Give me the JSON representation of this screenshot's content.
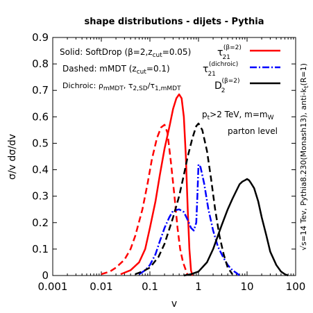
{
  "chart_data": {
    "type": "line",
    "title": "shape distributions - dijets - Pythia",
    "xlabel": "v",
    "ylabel": "σ/v dσ/dv",
    "xscale": "log",
    "xlim": [
      0.001,
      100
    ],
    "ylim": [
      0,
      0.9
    ],
    "x_ticks": [
      0.001,
      0.01,
      0.1,
      1,
      10,
      100
    ],
    "x_tick_labels": [
      "0.001",
      "0.01",
      "0.1",
      "1",
      "10",
      "100"
    ],
    "y_ticks": [
      0,
      0.1,
      0.2,
      0.3,
      0.4,
      0.5,
      0.6,
      0.7,
      0.8,
      0.9
    ],
    "y_tick_labels": [
      "0",
      "0.1",
      "0.2",
      "0.3",
      "0.4",
      "0.5",
      "0.6",
      "0.7",
      "0.8",
      "0.9"
    ],
    "annotations": {
      "solid": "Solid: SoftDrop (β=2,z",
      "solid_sub": "cut",
      "solid_end": "=0.05)",
      "dashed": "Dashed: mMDT (z",
      "dashed_sub": "cut",
      "dashed_end": "=0.1)",
      "dichroic": "Dichroic: ρ",
      "dichroic_sub1": "mMDT",
      "dichroic_mid": ", τ",
      "dichroic_sub2": "2,SD",
      "dichroic_mid2": "/τ",
      "dichroic_sub3": "1,mMDT",
      "cut1": "p",
      "cut1_sub": "t",
      "cut1_mid": ">2 TeV, m=m",
      "cut1_sub2": "W",
      "cut2": "parton level",
      "side": "√s=14 Tev, Pythia8.230(Monash13), anti-k",
      "side_sub": "t",
      "side_end": "(R=1)"
    },
    "legend": {
      "placement": "top-right",
      "entries": [
        {
          "main": "τ",
          "sub": "21",
          "sup": "(β=2)"
        },
        {
          "main": "τ",
          "sub": "21",
          "sup": "(dichroic)"
        },
        {
          "main": "D",
          "sub": "2",
          "sup": "(β=2)"
        }
      ]
    },
    "colors": {
      "tau21": "#ff0000",
      "dichroic": "#0000ff",
      "d2": "#000000"
    },
    "series": [
      {
        "key": "tau21_softdrop",
        "style": "solid",
        "color": "#ff0000",
        "points": [
          [
            0.025,
            0.005
          ],
          [
            0.04,
            0.02
          ],
          [
            0.06,
            0.05
          ],
          [
            0.08,
            0.1
          ],
          [
            0.1,
            0.18
          ],
          [
            0.13,
            0.28
          ],
          [
            0.16,
            0.38
          ],
          [
            0.2,
            0.48
          ],
          [
            0.25,
            0.56
          ],
          [
            0.3,
            0.63
          ],
          [
            0.35,
            0.67
          ],
          [
            0.4,
            0.685
          ],
          [
            0.45,
            0.67
          ],
          [
            0.5,
            0.6
          ],
          [
            0.55,
            0.45
          ],
          [
            0.6,
            0.25
          ],
          [
            0.65,
            0.1
          ],
          [
            0.7,
            0.02
          ],
          [
            0.75,
            0.0
          ]
        ]
      },
      {
        "key": "tau21_mmdt",
        "style": "dashed",
        "color": "#ff0000",
        "points": [
          [
            0.01,
            0.005
          ],
          [
            0.015,
            0.015
          ],
          [
            0.02,
            0.03
          ],
          [
            0.03,
            0.06
          ],
          [
            0.04,
            0.1
          ],
          [
            0.05,
            0.15
          ],
          [
            0.07,
            0.25
          ],
          [
            0.09,
            0.35
          ],
          [
            0.11,
            0.44
          ],
          [
            0.14,
            0.52
          ],
          [
            0.17,
            0.56
          ],
          [
            0.2,
            0.57
          ],
          [
            0.23,
            0.54
          ],
          [
            0.27,
            0.43
          ],
          [
            0.32,
            0.3
          ],
          [
            0.37,
            0.18
          ],
          [
            0.42,
            0.1
          ],
          [
            0.48,
            0.05
          ],
          [
            0.55,
            0.02
          ],
          [
            0.6,
            0.0
          ]
        ]
      },
      {
        "key": "tau21_dichroic",
        "style": "dashdot",
        "color": "#0000ff",
        "points": [
          [
            0.06,
            0.005
          ],
          [
            0.08,
            0.02
          ],
          [
            0.1,
            0.04
          ],
          [
            0.13,
            0.08
          ],
          [
            0.16,
            0.13
          ],
          [
            0.2,
            0.18
          ],
          [
            0.25,
            0.22
          ],
          [
            0.3,
            0.245
          ],
          [
            0.4,
            0.25
          ],
          [
            0.5,
            0.24
          ],
          [
            0.6,
            0.21
          ],
          [
            0.7,
            0.18
          ],
          [
            0.8,
            0.17
          ],
          [
            0.9,
            0.2
          ],
          [
            0.95,
            0.3
          ],
          [
            1.0,
            0.42
          ],
          [
            1.1,
            0.41
          ],
          [
            1.3,
            0.35
          ],
          [
            1.6,
            0.25
          ],
          [
            2.0,
            0.17
          ],
          [
            2.5,
            0.11
          ],
          [
            3.2,
            0.07
          ],
          [
            4.0,
            0.04
          ],
          [
            5.0,
            0.02
          ],
          [
            6.0,
            0.01
          ],
          [
            7.0,
            0.0
          ]
        ]
      },
      {
        "key": "d2_mmdt",
        "style": "dashed",
        "color": "#000000",
        "points": [
          [
            0.05,
            0.005
          ],
          [
            0.07,
            0.015
          ],
          [
            0.1,
            0.03
          ],
          [
            0.15,
            0.07
          ],
          [
            0.2,
            0.12
          ],
          [
            0.3,
            0.22
          ],
          [
            0.4,
            0.3
          ],
          [
            0.5,
            0.38
          ],
          [
            0.6,
            0.45
          ],
          [
            0.75,
            0.52
          ],
          [
            0.9,
            0.565
          ],
          [
            1.0,
            0.575
          ],
          [
            1.2,
            0.55
          ],
          [
            1.5,
            0.47
          ],
          [
            1.8,
            0.37
          ],
          [
            2.2,
            0.25
          ],
          [
            2.7,
            0.15
          ],
          [
            3.3,
            0.08
          ],
          [
            4.0,
            0.03
          ],
          [
            5.0,
            0.005
          ]
        ]
      },
      {
        "key": "d2_softdrop",
        "style": "solid",
        "color": "#000000",
        "points": [
          [
            0.5,
            0.0
          ],
          [
            0.7,
            0.005
          ],
          [
            1.0,
            0.015
          ],
          [
            1.5,
            0.05
          ],
          [
            2.0,
            0.1
          ],
          [
            2.5,
            0.15
          ],
          [
            3.0,
            0.19
          ],
          [
            4.0,
            0.25
          ],
          [
            5.0,
            0.29
          ],
          [
            6.0,
            0.32
          ],
          [
            7.0,
            0.345
          ],
          [
            8.0,
            0.355
          ],
          [
            9.0,
            0.36
          ],
          [
            10.0,
            0.365
          ],
          [
            11.0,
            0.36
          ],
          [
            12.0,
            0.35
          ],
          [
            14.0,
            0.33
          ],
          [
            17.0,
            0.28
          ],
          [
            20.0,
            0.22
          ],
          [
            25.0,
            0.15
          ],
          [
            30.0,
            0.09
          ],
          [
            40.0,
            0.04
          ],
          [
            50.0,
            0.015
          ],
          [
            60.0,
            0.005
          ],
          [
            70.0,
            0.0
          ]
        ]
      }
    ]
  }
}
